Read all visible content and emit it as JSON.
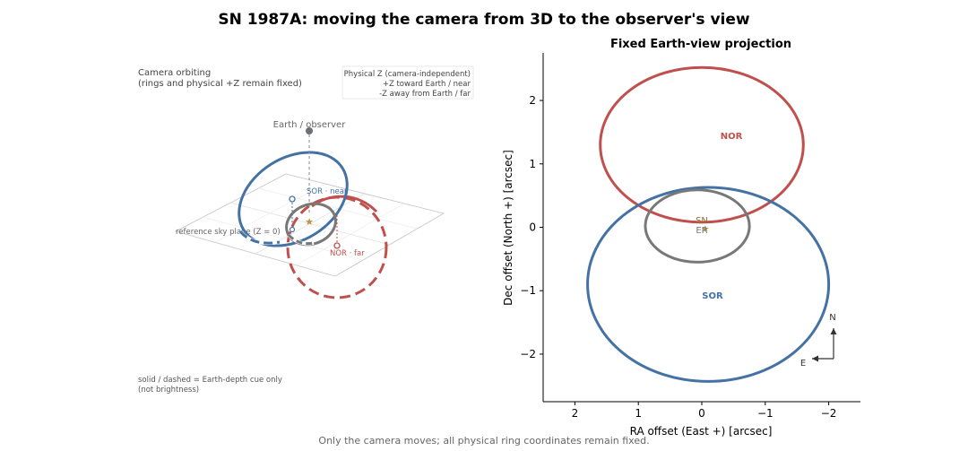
{
  "figure": {
    "title": "SN 1987A: moving the camera from 3D to the observer's view",
    "footer": "Only the camera moves; all physical ring coordinates remain fixed."
  },
  "colors": {
    "nor": "#c0504d",
    "sor": "#4472a4",
    "inner": "#787878",
    "observer": "#6e6e78",
    "sn": "#b8943c",
    "text_gray": "#555555"
  },
  "left_panel": {
    "camera_note_1": "Camera orbiting",
    "camera_note_2": "(rings and physical +Z remain fixed)",
    "legend_lines": [
      "Physical Z (camera-independent)",
      "+Z  toward Earth / near",
      "-Z  away from Earth / far"
    ],
    "earth_label": "Earth / observer",
    "sor_label": "SOR · near",
    "nor_label": "NOR · far",
    "plane_label": "reference sky plane (Z = 0)",
    "depth_note_1": "solid / dashed = Earth-depth cue only",
    "depth_note_2": "(not brightness)"
  },
  "right_panel": {
    "title": "Fixed Earth-view projection",
    "ring_labels": {
      "nor": "NOR",
      "sor": "SOR",
      "sn": "SN",
      "er": "ER"
    },
    "compass": {
      "north": "N",
      "east": "E"
    }
  },
  "chart_data": {
    "type": "line",
    "title": "Fixed Earth-view projection",
    "xlabel": "RA offset (East +) [arcsec]",
    "ylabel": "Dec offset (North +) [arcsec]",
    "xlim": [
      2.5,
      -2.5
    ],
    "ylim": [
      -2.75,
      2.75
    ],
    "xticks": [
      2,
      1,
      0,
      -1,
      -2
    ],
    "xtick_labels": [
      "2",
      "1",
      "0",
      "−1",
      "−2"
    ],
    "yticks": [
      -2,
      -1,
      0,
      1,
      2
    ],
    "ytick_labels": [
      "−2",
      "−1",
      "0",
      "1",
      "2"
    ],
    "grid": false,
    "series": [
      {
        "name": "NOR",
        "shape": "ellipse",
        "center": [
          0.0,
          1.3
        ],
        "semi_axes": [
          1.6,
          1.22
        ],
        "color": "#c0504d"
      },
      {
        "name": "SOR",
        "shape": "ellipse",
        "center": [
          -0.1,
          -0.9
        ],
        "semi_axes": [
          1.9,
          1.53
        ],
        "color": "#4472a4"
      },
      {
        "name": "ER",
        "shape": "ellipse",
        "center": [
          0.07,
          0.02
        ],
        "semi_axes": [
          0.82,
          0.57
        ],
        "color": "#787878"
      }
    ],
    "points": [
      {
        "name": "SN",
        "x": 0.0,
        "y": 0.0
      }
    ]
  }
}
